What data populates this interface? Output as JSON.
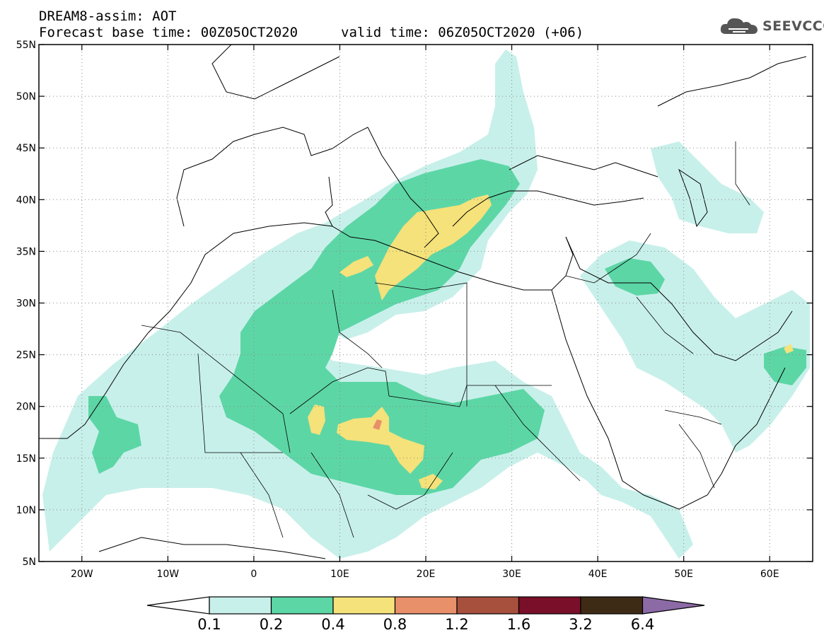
{
  "header": {
    "title": "DREAM8-assim: AOT",
    "base_time": "Forecast base time: 00Z05OCT2020",
    "valid_time": "valid time: 06Z05OCT2020 (+06)"
  },
  "logo": {
    "text": "SEEVCCC",
    "icon": "cloud-logo-icon"
  },
  "map": {
    "lon_range": [
      -25,
      65
    ],
    "lat_range": [
      5,
      55
    ],
    "grid": "dotted",
    "lat_labels": [
      "55N",
      "50N",
      "45N",
      "40N",
      "35N",
      "30N",
      "25N",
      "20N",
      "15N",
      "10N",
      "5N"
    ],
    "lon_labels": [
      "20W",
      "10W",
      "0",
      "10E",
      "20E",
      "30E",
      "40E",
      "50E",
      "60E"
    ]
  },
  "legend": {
    "labels": [
      "0.1",
      "0.2",
      "0.4",
      "0.8",
      "1.2",
      "1.6",
      "3.2",
      "6.4"
    ],
    "colors": [
      "#c8f0ea",
      "#5dd6a6",
      "#f5e27a",
      "#e8906a",
      "#a8503e",
      "#7a0f2a",
      "#3e2b16",
      "#8c6aa6"
    ]
  }
}
